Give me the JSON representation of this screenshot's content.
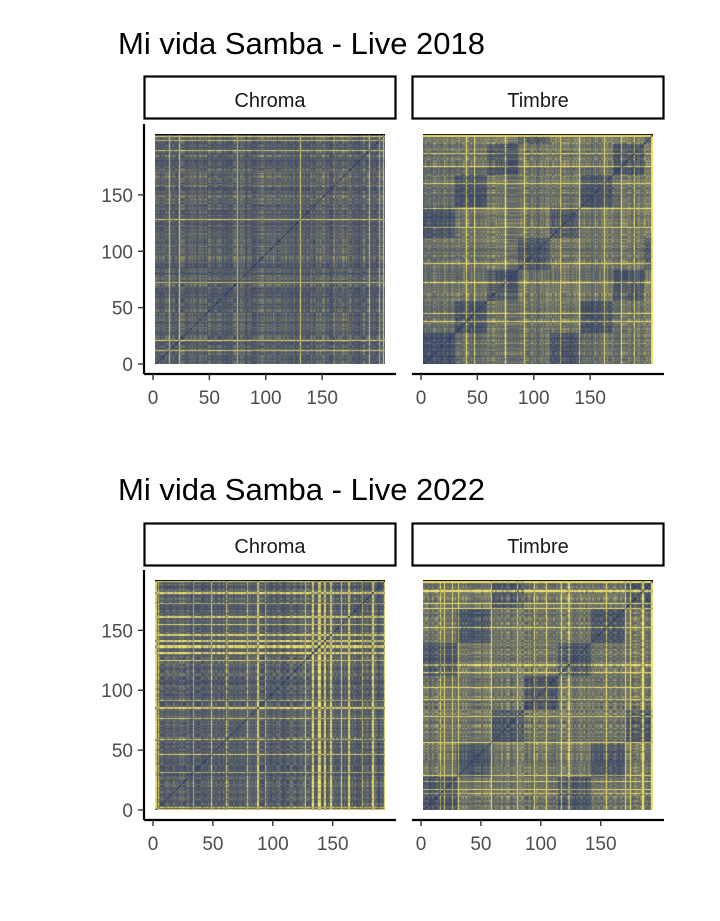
{
  "chart_data": [
    {
      "type": "heatmap",
      "title": "Mi vida Samba - Live 2018",
      "facets": [
        "Chroma",
        "Timbre"
      ],
      "x_ticks": [
        0,
        50,
        100,
        150
      ],
      "y_ticks": [
        0,
        50,
        100,
        150
      ],
      "xlim": [
        0,
        204
      ],
      "ylim": [
        0,
        204
      ],
      "n_segments": 204,
      "colors": {
        "low": "#2b3a67",
        "high": "#f5e56b"
      },
      "xlabel": "",
      "ylabel": ""
    },
    {
      "type": "heatmap",
      "title": "Mi vida Samba - Live 2022",
      "facets": [
        "Chroma",
        "Timbre"
      ],
      "x_ticks": [
        0,
        50,
        100,
        150
      ],
      "y_ticks": [
        0,
        50,
        100,
        150
      ],
      "xlim": [
        0,
        192
      ],
      "ylim": [
        0,
        192
      ],
      "n_segments": 192,
      "colors": {
        "low": "#2b3a67",
        "high": "#f5e56b"
      },
      "xlabel": "",
      "ylabel": ""
    }
  ]
}
